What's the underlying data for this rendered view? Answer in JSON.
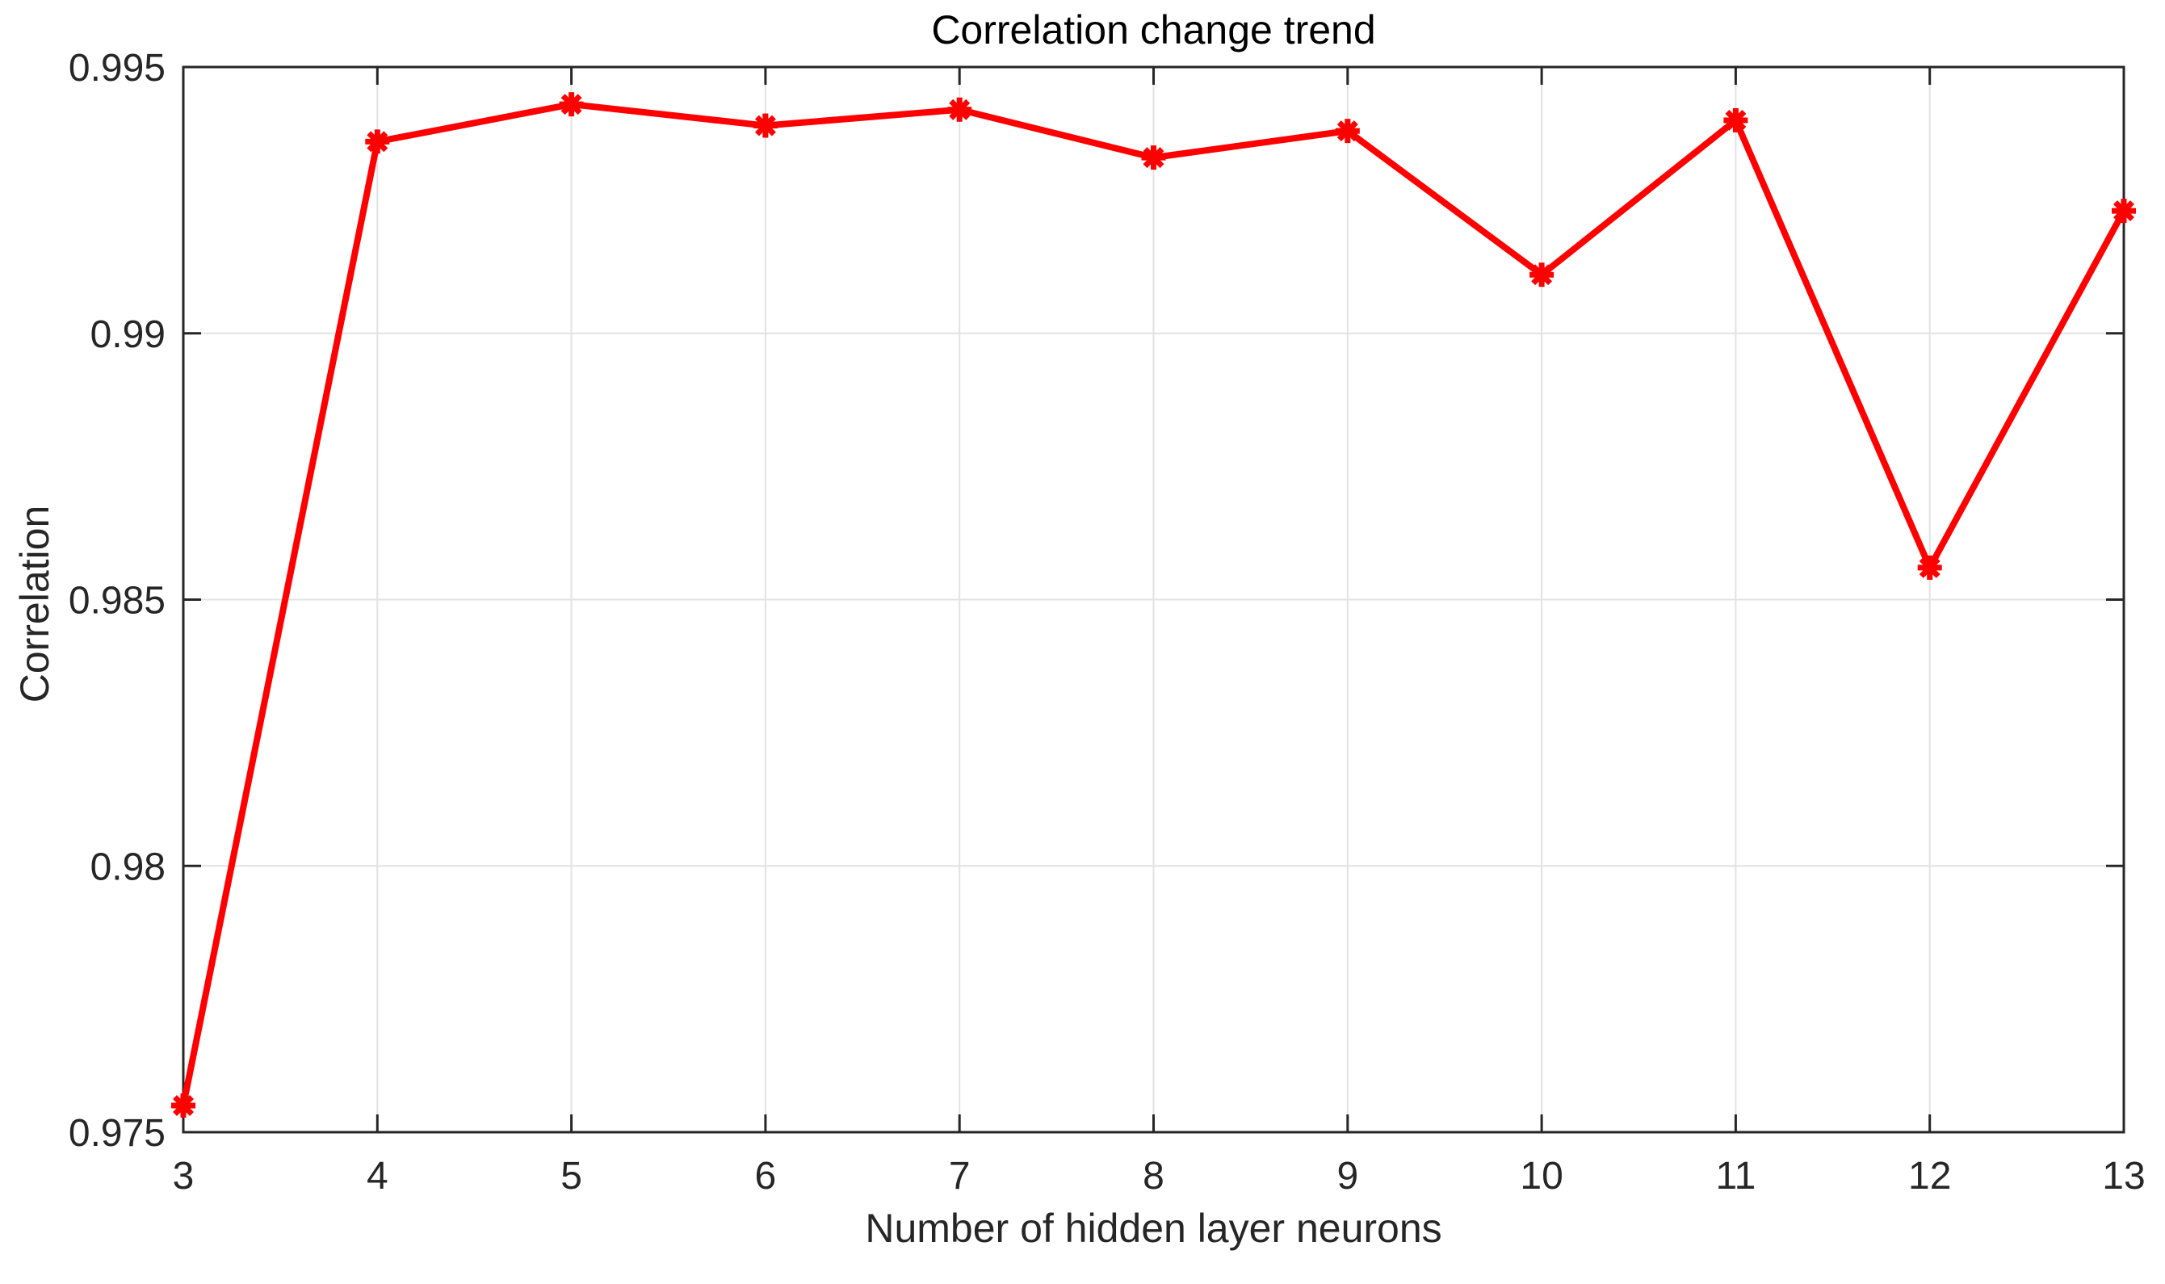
{
  "page": {
    "background": "#ffffff"
  },
  "chart_data": {
    "type": "line",
    "title": "Correlation change trend",
    "xlabel": "Number of hidden layer neurons",
    "ylabel": "Correlation",
    "x": [
      3,
      4,
      5,
      6,
      7,
      8,
      9,
      10,
      11,
      12,
      13
    ],
    "values": [
      0.9755,
      0.9936,
      0.9943,
      0.9939,
      0.9942,
      0.9933,
      0.9938,
      0.9911,
      0.994,
      0.9856,
      0.9923
    ],
    "xlim": [
      3,
      13
    ],
    "ylim": [
      0.975,
      0.995
    ],
    "xticks": [
      3,
      4,
      5,
      6,
      7,
      8,
      9,
      10,
      11,
      12,
      13
    ],
    "xtick_labels": [
      "3",
      "4",
      "5",
      "6",
      "7",
      "8",
      "9",
      "10",
      "11",
      "12",
      "13"
    ],
    "yticks": [
      0.975,
      0.98,
      0.985,
      0.99,
      0.995
    ],
    "ytick_labels": [
      "0.975",
      "0.98",
      "0.985",
      "0.99",
      "0.995"
    ],
    "grid": true,
    "legend": "none",
    "marker": "asterisk",
    "line_color": "#ff0000",
    "axis_color": "#262626",
    "grid_color": "#e2e2e2",
    "title_color": "#000000"
  }
}
